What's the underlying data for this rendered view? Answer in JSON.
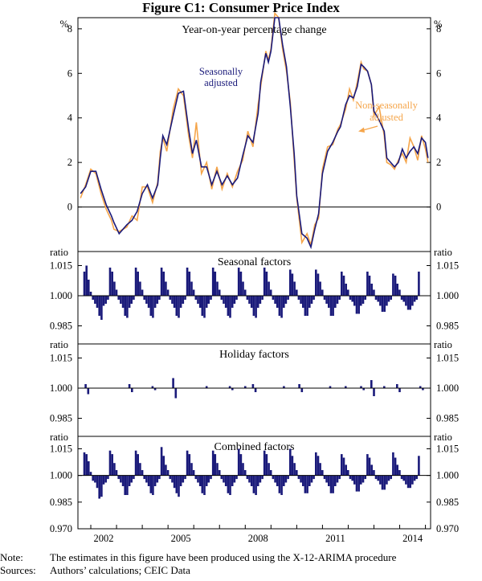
{
  "figure": {
    "title": "Figure C1: Consumer Price Index"
  },
  "chart_data": [
    {
      "type": "line",
      "title": "Year-on-year percentage change",
      "unit_left": "%",
      "unit_right": "%",
      "ylim": [
        -2,
        8.5
      ],
      "yticks": [
        0,
        2,
        4,
        6,
        8
      ],
      "xlim": [
        2000.5,
        2014.2
      ],
      "series": [
        {
          "name": "Seasonally adjusted",
          "color": "#1a1a7a",
          "points": [
            [
              2000.6,
              0.6
            ],
            [
              2000.8,
              0.9
            ],
            [
              2001.0,
              1.6
            ],
            [
              2001.2,
              1.6
            ],
            [
              2001.4,
              0.8
            ],
            [
              2001.6,
              0.1
            ],
            [
              2001.8,
              -0.4
            ],
            [
              2001.9,
              -0.7
            ],
            [
              2002.1,
              -1.2
            ],
            [
              2002.4,
              -0.8
            ],
            [
              2002.6,
              -0.6
            ],
            [
              2002.8,
              -0.2
            ],
            [
              2003.0,
              0.6
            ],
            [
              2003.2,
              1.0
            ],
            [
              2003.4,
              0.4
            ],
            [
              2003.6,
              1.0
            ],
            [
              2003.7,
              2.2
            ],
            [
              2003.8,
              3.2
            ],
            [
              2003.95,
              2.8
            ],
            [
              2004.2,
              4.1
            ],
            [
              2004.4,
              5.1
            ],
            [
              2004.6,
              5.2
            ],
            [
              2004.8,
              3.5
            ],
            [
              2004.95,
              2.4
            ],
            [
              2005.1,
              3.0
            ],
            [
              2005.3,
              1.8
            ],
            [
              2005.5,
              1.8
            ],
            [
              2005.7,
              1.0
            ],
            [
              2005.9,
              1.6
            ],
            [
              2006.1,
              1.0
            ],
            [
              2006.3,
              1.4
            ],
            [
              2006.5,
              1.0
            ],
            [
              2006.7,
              1.3
            ],
            [
              2006.9,
              2.3
            ],
            [
              2007.1,
              3.2
            ],
            [
              2007.3,
              2.9
            ],
            [
              2007.5,
              4.2
            ],
            [
              2007.6,
              5.6
            ],
            [
              2007.8,
              6.9
            ],
            [
              2007.9,
              6.5
            ],
            [
              2008.0,
              7.0
            ],
            [
              2008.15,
              8.5
            ],
            [
              2008.3,
              8.5
            ],
            [
              2008.45,
              7.3
            ],
            [
              2008.6,
              6.3
            ],
            [
              2008.75,
              4.5
            ],
            [
              2008.9,
              2.4
            ],
            [
              2009.0,
              0.5
            ],
            [
              2009.2,
              -1.2
            ],
            [
              2009.4,
              -1.4
            ],
            [
              2009.55,
              -1.8
            ],
            [
              2009.7,
              -1.0
            ],
            [
              2009.85,
              -0.3
            ],
            [
              2010.0,
              1.5
            ],
            [
              2010.2,
              2.5
            ],
            [
              2010.4,
              2.9
            ],
            [
              2010.6,
              3.4
            ],
            [
              2010.7,
              3.6
            ],
            [
              2010.9,
              4.6
            ],
            [
              2011.05,
              5.0
            ],
            [
              2011.2,
              4.9
            ],
            [
              2011.35,
              5.4
            ],
            [
              2011.5,
              6.4
            ],
            [
              2011.6,
              6.3
            ],
            [
              2011.75,
              6.1
            ],
            [
              2011.9,
              5.5
            ],
            [
              2012.0,
              4.3
            ],
            [
              2012.2,
              3.9
            ],
            [
              2012.4,
              3.4
            ],
            [
              2012.5,
              2.2
            ],
            [
              2012.65,
              2.0
            ],
            [
              2012.8,
              1.8
            ],
            [
              2012.95,
              2.0
            ],
            [
              2013.1,
              2.6
            ],
            [
              2013.25,
              2.2
            ],
            [
              2013.4,
              2.5
            ],
            [
              2013.55,
              2.7
            ],
            [
              2013.7,
              2.4
            ],
            [
              2013.85,
              3.1
            ],
            [
              2014.0,
              2.9
            ],
            [
              2014.1,
              2.2
            ]
          ]
        },
        {
          "name": "Non-seasonally adjusted",
          "color": "#f5a54a",
          "points": [
            [
              2000.6,
              0.4
            ],
            [
              2000.8,
              1.0
            ],
            [
              2001.0,
              1.7
            ],
            [
              2001.2,
              1.5
            ],
            [
              2001.4,
              0.6
            ],
            [
              2001.6,
              -0.1
            ],
            [
              2001.8,
              -0.6
            ],
            [
              2001.9,
              -1.0
            ],
            [
              2002.1,
              -1.1
            ],
            [
              2002.4,
              -0.9
            ],
            [
              2002.6,
              -0.4
            ],
            [
              2002.8,
              -0.6
            ],
            [
              2003.0,
              0.9
            ],
            [
              2003.2,
              0.9
            ],
            [
              2003.4,
              0.2
            ],
            [
              2003.6,
              1.1
            ],
            [
              2003.7,
              2.5
            ],
            [
              2003.8,
              3.1
            ],
            [
              2003.95,
              2.5
            ],
            [
              2004.2,
              4.4
            ],
            [
              2004.4,
              5.3
            ],
            [
              2004.6,
              5.0
            ],
            [
              2004.8,
              3.2
            ],
            [
              2004.95,
              2.2
            ],
            [
              2005.1,
              3.8
            ],
            [
              2005.3,
              1.5
            ],
            [
              2005.5,
              2.0
            ],
            [
              2005.7,
              0.8
            ],
            [
              2005.9,
              1.8
            ],
            [
              2006.1,
              0.8
            ],
            [
              2006.3,
              1.5
            ],
            [
              2006.5,
              0.9
            ],
            [
              2006.7,
              1.6
            ],
            [
              2006.9,
              2.1
            ],
            [
              2007.1,
              3.4
            ],
            [
              2007.3,
              2.7
            ],
            [
              2007.5,
              4.6
            ],
            [
              2007.6,
              5.4
            ],
            [
              2007.8,
              7.0
            ],
            [
              2007.9,
              6.6
            ],
            [
              2008.0,
              7.1
            ],
            [
              2008.15,
              8.7
            ],
            [
              2008.3,
              8.5
            ],
            [
              2008.45,
              7.1
            ],
            [
              2008.6,
              6.1
            ],
            [
              2008.75,
              4.7
            ],
            [
              2008.9,
              2.1
            ],
            [
              2009.0,
              0.4
            ],
            [
              2009.2,
              -1.6
            ],
            [
              2009.4,
              -1.2
            ],
            [
              2009.55,
              -1.7
            ],
            [
              2009.7,
              -0.8
            ],
            [
              2009.85,
              -0.5
            ],
            [
              2010.0,
              1.7
            ],
            [
              2010.2,
              2.7
            ],
            [
              2010.4,
              2.8
            ],
            [
              2010.6,
              3.5
            ],
            [
              2010.7,
              3.7
            ],
            [
              2010.9,
              4.4
            ],
            [
              2011.05,
              5.3
            ],
            [
              2011.2,
              4.8
            ],
            [
              2011.35,
              5.6
            ],
            [
              2011.5,
              6.5
            ],
            [
              2011.6,
              6.2
            ],
            [
              2011.75,
              6.1
            ],
            [
              2011.9,
              5.5
            ],
            [
              2012.0,
              4.1
            ],
            [
              2012.2,
              4.5
            ],
            [
              2012.4,
              3.2
            ],
            [
              2012.5,
              2.0
            ],
            [
              2012.65,
              1.9
            ],
            [
              2012.8,
              1.7
            ],
            [
              2012.95,
              2.1
            ],
            [
              2013.1,
              2.4
            ],
            [
              2013.25,
              2.0
            ],
            [
              2013.4,
              3.1
            ],
            [
              2013.55,
              2.7
            ],
            [
              2013.7,
              2.1
            ],
            [
              2013.85,
              3.2
            ],
            [
              2014.0,
              2.6
            ],
            [
              2014.1,
              2.0
            ]
          ]
        }
      ],
      "labels": [
        "Seasonally",
        "adjusted",
        "Non-seasonally",
        "adjusted"
      ]
    },
    {
      "type": "bar",
      "title": "Seasonal factors",
      "unit_left": "ratio",
      "unit_right": "ratio",
      "baseline": 1.0,
      "ylim": [
        0.976,
        1.022
      ],
      "yticks": [
        "1.015",
        "1.000",
        "0.985"
      ],
      "color": "#1a1a7a",
      "start": 2000.75,
      "step": 0.0833,
      "values": [
        1.012,
        1.015,
        1.008,
        1.002,
        0.998,
        0.996,
        0.994,
        0.99,
        0.988,
        0.995,
        0.996,
        0.998,
        1.014,
        1.012,
        1.007,
        1.003,
        0.998,
        0.996,
        0.994,
        0.99,
        0.989,
        0.994,
        0.996,
        0.998,
        1.014,
        1.012,
        1.007,
        1.003,
        0.998,
        0.996,
        0.994,
        0.99,
        0.989,
        0.994,
        0.996,
        0.998,
        1.014,
        1.012,
        1.007,
        1.003,
        0.998,
        0.996,
        0.994,
        0.99,
        0.989,
        0.994,
        0.996,
        0.998,
        1.014,
        1.012,
        1.007,
        1.003,
        0.998,
        0.996,
        0.994,
        0.99,
        0.989,
        0.994,
        0.996,
        0.998,
        1.014,
        1.012,
        1.007,
        1.003,
        0.998,
        0.996,
        0.994,
        0.99,
        0.989,
        0.994,
        0.996,
        0.998,
        1.014,
        1.012,
        1.007,
        1.003,
        0.998,
        0.996,
        0.994,
        0.99,
        0.989,
        0.994,
        0.996,
        0.998,
        1.014,
        1.012,
        1.007,
        1.003,
        0.998,
        0.996,
        0.994,
        0.99,
        0.989,
        0.994,
        0.996,
        0.998,
        1.013,
        1.011,
        1.007,
        1.003,
        0.998,
        0.996,
        0.994,
        0.99,
        0.99,
        0.994,
        0.996,
        0.998,
        1.013,
        1.011,
        1.007,
        1.003,
        0.998,
        0.996,
        0.994,
        0.99,
        0.99,
        0.994,
        0.996,
        0.998,
        1.012,
        1.01,
        1.006,
        1.003,
        0.998,
        0.997,
        0.995,
        0.991,
        0.991,
        0.995,
        0.996,
        0.998,
        1.012,
        1.01,
        1.006,
        1.003,
        0.998,
        0.997,
        0.995,
        0.992,
        0.992,
        0.995,
        0.997,
        0.998,
        1.011,
        1.01,
        1.006,
        1.003,
        0.998,
        0.997,
        0.995,
        0.993,
        0.993,
        0.995,
        0.997,
        0.998,
        1.012
      ]
    },
    {
      "type": "bar",
      "title": "Holiday factors",
      "unit_left": "ratio",
      "unit_right": "ratio",
      "baseline": 1.0,
      "ylim": [
        0.976,
        1.022
      ],
      "yticks": [
        "1.015",
        "1.000",
        "0.985"
      ],
      "color": "#1a1a7a",
      "spikes": [
        [
          2000.8,
          1.002
        ],
        [
          2000.9,
          0.997
        ],
        [
          2002.5,
          1.002
        ],
        [
          2002.6,
          0.998
        ],
        [
          2003.4,
          1.001
        ],
        [
          2003.5,
          0.999
        ],
        [
          2004.2,
          1.005
        ],
        [
          2004.3,
          0.995
        ],
        [
          2005.5,
          1.001
        ],
        [
          2006.4,
          1.001
        ],
        [
          2006.5,
          0.999
        ],
        [
          2007.0,
          1.001
        ],
        [
          2007.3,
          1.002
        ],
        [
          2007.4,
          0.998
        ],
        [
          2008.5,
          1.001
        ],
        [
          2009.1,
          1.002
        ],
        [
          2009.2,
          0.998
        ],
        [
          2010.3,
          1.001
        ],
        [
          2010.9,
          1.001
        ],
        [
          2011.5,
          1.001
        ],
        [
          2011.6,
          0.999
        ],
        [
          2011.9,
          1.004
        ],
        [
          2012.0,
          0.996
        ],
        [
          2012.4,
          1.001
        ],
        [
          2012.9,
          1.002
        ],
        [
          2013.0,
          0.998
        ],
        [
          2013.8,
          1.001
        ],
        [
          2013.9,
          0.999
        ]
      ]
    },
    {
      "type": "bar",
      "title": "Combined factors",
      "unit_left": "ratio",
      "unit_right": "ratio",
      "baseline": 1.0,
      "ylim": [
        0.97,
        1.022
      ],
      "yticks": [
        "1.015",
        "1.000",
        "0.985",
        "0.970"
      ],
      "xticks": [
        "2002",
        "2005",
        "2008",
        "2011",
        "2014"
      ],
      "color": "#1a1a7a",
      "start": 2000.75,
      "step": 0.0833,
      "values": [
        1.013,
        1.012,
        1.008,
        1.002,
        0.997,
        0.996,
        0.993,
        0.987,
        0.988,
        0.995,
        0.996,
        0.998,
        1.014,
        1.012,
        1.007,
        1.003,
        0.998,
        0.996,
        0.994,
        0.989,
        0.989,
        0.994,
        0.996,
        0.998,
        1.014,
        1.012,
        1.007,
        1.003,
        0.998,
        0.996,
        0.994,
        0.99,
        0.989,
        0.994,
        0.996,
        0.998,
        1.016,
        1.011,
        1.006,
        1.003,
        0.998,
        0.996,
        0.993,
        0.99,
        0.988,
        0.994,
        0.996,
        0.998,
        1.014,
        1.012,
        1.007,
        1.003,
        0.998,
        0.996,
        0.994,
        0.99,
        0.989,
        0.994,
        0.996,
        0.998,
        1.014,
        1.012,
        1.007,
        1.003,
        0.998,
        0.996,
        0.994,
        0.99,
        0.989,
        0.994,
        0.996,
        0.998,
        1.015,
        1.012,
        1.007,
        1.003,
        0.998,
        0.996,
        0.994,
        0.99,
        0.989,
        0.994,
        0.996,
        0.998,
        1.014,
        1.012,
        1.007,
        1.003,
        0.998,
        0.996,
        0.994,
        0.99,
        0.989,
        0.994,
        0.996,
        0.998,
        1.015,
        1.011,
        1.007,
        1.003,
        0.998,
        0.996,
        0.994,
        0.99,
        0.99,
        0.994,
        0.996,
        0.998,
        1.013,
        1.011,
        1.007,
        1.003,
        0.998,
        0.996,
        0.994,
        0.99,
        0.99,
        0.994,
        0.996,
        0.998,
        1.012,
        1.01,
        1.006,
        1.003,
        0.998,
        0.997,
        0.995,
        0.991,
        0.991,
        0.995,
        0.996,
        0.998,
        1.012,
        1.01,
        1.006,
        1.003,
        0.998,
        0.997,
        0.995,
        0.992,
        0.992,
        0.995,
        0.997,
        0.998,
        1.013,
        1.01,
        1.006,
        1.003,
        0.998,
        0.997,
        0.995,
        0.993,
        0.993,
        0.995,
        0.997,
        0.998,
        1.011
      ]
    }
  ],
  "notes": {
    "note_label": "Note:",
    "note_text": "The estimates in this figure have been produced using the X-12-ARIMA procedure",
    "sources_label": "Sources:",
    "sources_text": "Authors’ calculations; CEIC Data"
  }
}
